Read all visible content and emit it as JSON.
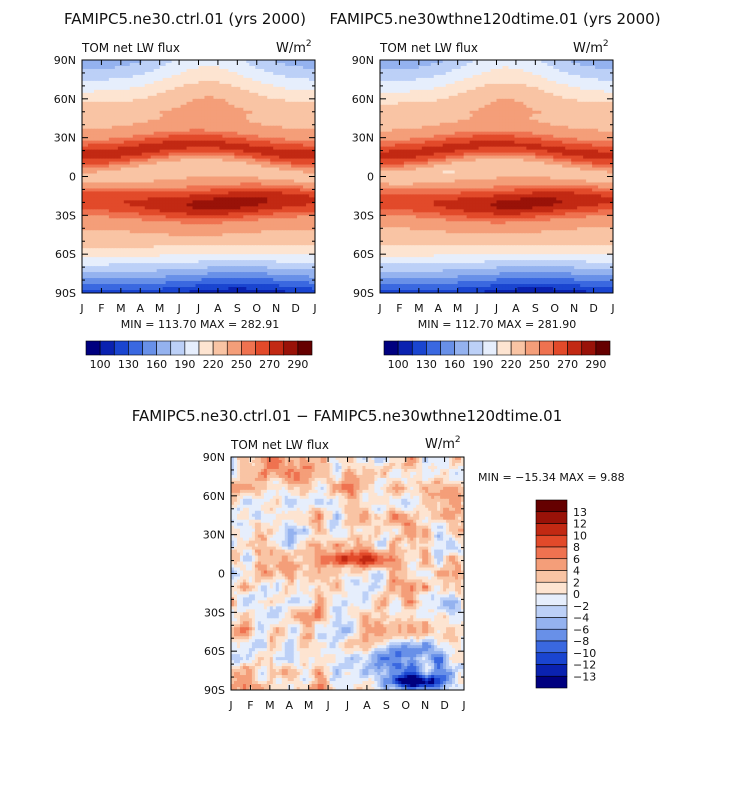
{
  "chart_data": [
    {
      "type": "heatmap",
      "panel": "ctrl",
      "title": "FAMIPC5.ne30.ctrl.01 (yrs 2000)",
      "subtitle_left": "TOM net LW flux",
      "units_base": "W/m",
      "units_exp": "2",
      "x_tick_labels": [
        "J",
        "F",
        "M",
        "A",
        "M",
        "J",
        "J",
        "A",
        "S",
        "O",
        "N",
        "D",
        "J"
      ],
      "y_tick_labels": [
        "90N",
        "60N",
        "30N",
        "0",
        "30S",
        "60S",
        "90S"
      ],
      "y_range": [
        -90,
        90
      ],
      "stats": "MIN = 113.70  MAX = 282.91",
      "min": 113.7,
      "max": 282.91,
      "colorbar": {
        "orientation": "horizontal",
        "levels": [
          100,
          115,
          130,
          145,
          160,
          175,
          190,
          205,
          220,
          235,
          250,
          260,
          270,
          280,
          290
        ],
        "labels": [
          "100",
          "130",
          "160",
          "190",
          "220",
          "250",
          "270",
          "290"
        ],
        "colors": [
          "#00007f",
          "#0a22b0",
          "#1a45d0",
          "#3a68e0",
          "#6890e8",
          "#94b2ef",
          "#bcd0f7",
          "#e6eefc",
          "#fde4d1",
          "#f9c4a4",
          "#f49e79",
          "#ef7250",
          "#e24a2a",
          "#c22913",
          "#991208",
          "#650000"
        ]
      }
    },
    {
      "type": "heatmap",
      "panel": "test",
      "title": "FAMIPC5.ne30wthne120dtime.01 (yrs 2000)",
      "subtitle_left": "TOM net LW flux",
      "units_base": "W/m",
      "units_exp": "2",
      "x_tick_labels": [
        "J",
        "F",
        "M",
        "A",
        "M",
        "J",
        "J",
        "A",
        "S",
        "O",
        "N",
        "D",
        "J"
      ],
      "y_tick_labels": [
        "90N",
        "60N",
        "30N",
        "0",
        "30S",
        "60S",
        "90S"
      ],
      "y_range": [
        -90,
        90
      ],
      "stats": "MIN = 112.70  MAX = 281.90",
      "min": 112.7,
      "max": 281.9,
      "colorbar": {
        "orientation": "horizontal",
        "levels": [
          100,
          115,
          130,
          145,
          160,
          175,
          190,
          205,
          220,
          235,
          250,
          260,
          270,
          280,
          290
        ],
        "labels": [
          "100",
          "130",
          "160",
          "190",
          "220",
          "250",
          "270",
          "290"
        ],
        "colors": [
          "#00007f",
          "#0a22b0",
          "#1a45d0",
          "#3a68e0",
          "#6890e8",
          "#94b2ef",
          "#bcd0f7",
          "#e6eefc",
          "#fde4d1",
          "#f9c4a4",
          "#f49e79",
          "#ef7250",
          "#e24a2a",
          "#c22913",
          "#991208",
          "#650000"
        ]
      }
    },
    {
      "type": "heatmap",
      "panel": "diff",
      "title": "FAMIPC5.ne30.ctrl.01 − FAMIPC5.ne30wthne120dtime.01",
      "subtitle_left": "TOM net LW flux",
      "units_base": "W/m",
      "units_exp": "2",
      "x_tick_labels": [
        "J",
        "F",
        "M",
        "A",
        "M",
        "J",
        "J",
        "A",
        "S",
        "O",
        "N",
        "D",
        "J"
      ],
      "y_tick_labels": [
        "90N",
        "60N",
        "30N",
        "0",
        "30S",
        "60S",
        "90S"
      ],
      "y_range": [
        -90,
        90
      ],
      "stats": "MIN = −15.34  MAX =    9.88",
      "min": -15.34,
      "max": 9.88,
      "colorbar": {
        "orientation": "vertical",
        "levels": [
          -13,
          -12,
          -10,
          -8,
          -6,
          -4,
          -2,
          0,
          2,
          4,
          6,
          8,
          10,
          12,
          13
        ],
        "labels": [
          "13",
          "12",
          "10",
          "8",
          "6",
          "4",
          "2",
          "0",
          "−2",
          "−4",
          "−6",
          "−8",
          "−10",
          "−12",
          "−13"
        ],
        "colors": [
          "#00007f",
          "#0a22b0",
          "#1a45d0",
          "#3a68e0",
          "#6890e8",
          "#94b2ef",
          "#bcd0f7",
          "#e6eefc",
          "#fde4d1",
          "#f9c4a4",
          "#f49e79",
          "#ef7250",
          "#e24a2a",
          "#c22913",
          "#991208",
          "#650000"
        ]
      }
    }
  ]
}
